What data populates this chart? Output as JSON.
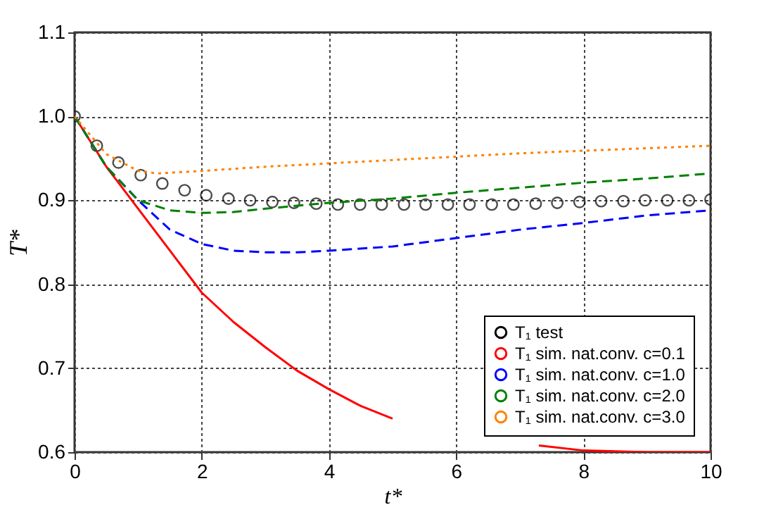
{
  "chart_data": {
    "type": "line",
    "xlabel": "t*",
    "ylabel": "T*",
    "xlim": [
      0,
      10
    ],
    "xticks": [
      0,
      2,
      4,
      6,
      8,
      10
    ],
    "ylim": [
      0.6,
      1.1
    ],
    "yticks": [
      {
        "value": 0.6,
        "label": "0.6"
      },
      {
        "value": 0.7,
        "label": "0.7"
      },
      {
        "value": 0.8,
        "label": "0.8"
      },
      {
        "value": 0.9,
        "label": "0.9"
      },
      {
        "value": 1.0,
        "label": "1.0"
      },
      {
        "value": 1.1,
        "label": "1.1"
      }
    ],
    "grid": true,
    "legend": "bottom right",
    "series": [
      {
        "name": "T₁ test",
        "type": "scatter",
        "marker": "circle",
        "color": "#000000",
        "x": [
          0,
          0.35,
          0.69,
          1.04,
          1.38,
          1.73,
          2.07,
          2.42,
          2.76,
          3.11,
          3.45,
          3.8,
          4.14,
          4.49,
          4.83,
          5.18,
          5.52,
          5.87,
          6.21,
          6.56,
          6.9,
          7.25,
          7.59,
          7.94,
          8.28,
          8.63,
          8.97,
          9.32,
          9.66,
          10.0
        ],
        "values": [
          1.0,
          0.965,
          0.945,
          0.93,
          0.92,
          0.912,
          0.906,
          0.902,
          0.9,
          0.898,
          0.897,
          0.896,
          0.895,
          0.895,
          0.895,
          0.895,
          0.895,
          0.895,
          0.895,
          0.895,
          0.895,
          0.896,
          0.897,
          0.898,
          0.899,
          0.899,
          0.9,
          0.9,
          0.9,
          0.901
        ]
      },
      {
        "name": "T₁ sim. nat.conv. c=0.1",
        "type": "line",
        "line_style": "solid",
        "color": "#ff0000",
        "x": [
          0,
          0.5,
          1,
          1.5,
          2,
          2.5,
          3,
          3.5,
          4,
          4.5,
          5,
          6,
          7.3,
          8,
          9,
          10
        ],
        "values": [
          1.0,
          0.94,
          0.89,
          0.84,
          0.79,
          0.755,
          0.725,
          0.697,
          0.675,
          0.655,
          0.64,
          null,
          0.608,
          0.602,
          0.6,
          0.6
        ]
      },
      {
        "name": "T₁ sim. nat.conv. c=1.0",
        "type": "line",
        "line_style": "dashed",
        "color": "#0000ff",
        "x": [
          0,
          0.5,
          1,
          1.5,
          2,
          2.5,
          3,
          3.5,
          4,
          5,
          6,
          7,
          8,
          9,
          10
        ],
        "values": [
          1.0,
          0.94,
          0.9,
          0.865,
          0.848,
          0.84,
          0.838,
          0.838,
          0.84,
          0.845,
          0.855,
          0.865,
          0.873,
          0.882,
          0.888
        ]
      },
      {
        "name": "T₁ sim. nat.conv. c=2.0",
        "type": "line",
        "line_style": "dashed",
        "color": "#008000",
        "x": [
          0,
          0.5,
          1,
          1.5,
          2,
          2.5,
          3,
          4,
          5,
          6,
          7,
          8,
          9,
          10
        ],
        "values": [
          1.0,
          0.94,
          0.9,
          0.888,
          0.885,
          0.886,
          0.89,
          0.897,
          0.902,
          0.909,
          0.915,
          0.921,
          0.926,
          0.932
        ]
      },
      {
        "name": "T₁ sim. nat.conv. c=3.0",
        "type": "line",
        "line_style": "dotted",
        "color": "#ff8000",
        "x": [
          0,
          0.5,
          1,
          1.3,
          2,
          3,
          4,
          5,
          6,
          7,
          8,
          9,
          10
        ],
        "values": [
          1.0,
          0.955,
          0.935,
          0.932,
          0.935,
          0.94,
          0.944,
          0.948,
          0.952,
          0.956,
          0.959,
          0.962,
          0.965
        ]
      }
    ]
  }
}
